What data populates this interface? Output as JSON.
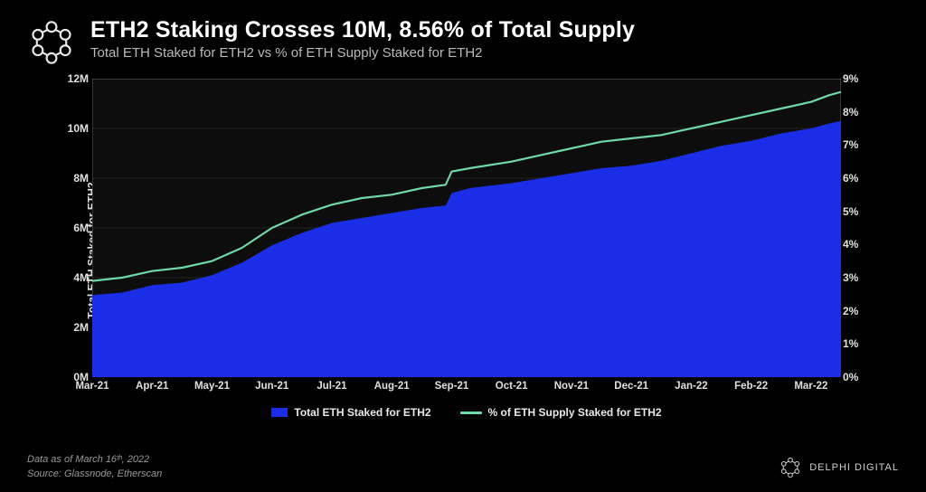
{
  "header": {
    "title": "ETH2 Staking Crosses 10M, 8.56% of Total Supply",
    "subtitle": "Total ETH Staked for ETH2 vs % of ETH Supply Staked for ETH2"
  },
  "chart": {
    "type": "area_and_line",
    "background_color": "#000000",
    "plot_background_color": "#0d0d0d",
    "grid_color": "#3a3a3a",
    "border_color": "#888888",
    "y_left": {
      "label": "Total ETH Staked for ETH2",
      "min": 0,
      "max": 12,
      "ticks": [
        0,
        2,
        4,
        6,
        8,
        10,
        12
      ],
      "tick_labels": [
        "0M",
        "2M",
        "4M",
        "6M",
        "8M",
        "10M",
        "12M"
      ]
    },
    "y_right": {
      "label": "% of ETH Supply Staked for ETH2",
      "min": 0,
      "max": 9,
      "ticks": [
        0,
        1,
        2,
        3,
        4,
        5,
        6,
        7,
        8,
        9
      ],
      "tick_labels": [
        "0%",
        "1%",
        "2%",
        "3%",
        "4%",
        "5%",
        "6%",
        "7%",
        "8%",
        "9%"
      ]
    },
    "x": {
      "ticks": [
        0,
        1,
        2,
        3,
        4,
        5,
        6,
        7,
        8,
        9,
        10,
        11,
        12
      ],
      "tick_labels": [
        "Mar-21",
        "Apr-21",
        "May-21",
        "Jun-21",
        "Jul-21",
        "Aug-21",
        "Sep-21",
        "Oct-21",
        "Nov-21",
        "Dec-21",
        "Jan-22",
        "Feb-22",
        "Mar-22"
      ],
      "min": 0,
      "max": 12.5
    },
    "series_area": {
      "name": "Total ETH Staked for ETH2",
      "color": "#1a2ee8",
      "points": [
        [
          0,
          3.3
        ],
        [
          0.5,
          3.4
        ],
        [
          1,
          3.7
        ],
        [
          1.5,
          3.8
        ],
        [
          2,
          4.1
        ],
        [
          2.5,
          4.6
        ],
        [
          3,
          5.3
        ],
        [
          3.5,
          5.8
        ],
        [
          4,
          6.2
        ],
        [
          4.5,
          6.4
        ],
        [
          5,
          6.6
        ],
        [
          5.5,
          6.8
        ],
        [
          5.9,
          6.9
        ],
        [
          6.0,
          7.4
        ],
        [
          6.3,
          7.6
        ],
        [
          7,
          7.8
        ],
        [
          7.5,
          8.0
        ],
        [
          8,
          8.2
        ],
        [
          8.5,
          8.4
        ],
        [
          9,
          8.5
        ],
        [
          9.5,
          8.7
        ],
        [
          10,
          9.0
        ],
        [
          10.5,
          9.3
        ],
        [
          11,
          9.5
        ],
        [
          11.5,
          9.8
        ],
        [
          12,
          10.0
        ],
        [
          12.3,
          10.2
        ],
        [
          12.5,
          10.3
        ]
      ]
    },
    "series_line": {
      "name": "% of ETH Supply Staked for ETH2",
      "color": "#6fd9a8",
      "line_width": 2.2,
      "points": [
        [
          0,
          2.9
        ],
        [
          0.5,
          3.0
        ],
        [
          1,
          3.2
        ],
        [
          1.5,
          3.3
        ],
        [
          2,
          3.5
        ],
        [
          2.5,
          3.9
        ],
        [
          3,
          4.5
        ],
        [
          3.5,
          4.9
        ],
        [
          4,
          5.2
        ],
        [
          4.5,
          5.4
        ],
        [
          5,
          5.5
        ],
        [
          5.5,
          5.7
        ],
        [
          5.9,
          5.8
        ],
        [
          6.0,
          6.2
        ],
        [
          6.3,
          6.3
        ],
        [
          7,
          6.5
        ],
        [
          7.5,
          6.7
        ],
        [
          8,
          6.9
        ],
        [
          8.5,
          7.1
        ],
        [
          9,
          7.2
        ],
        [
          9.5,
          7.3
        ],
        [
          10,
          7.5
        ],
        [
          10.5,
          7.7
        ],
        [
          11,
          7.9
        ],
        [
          11.5,
          8.1
        ],
        [
          12,
          8.3
        ],
        [
          12.3,
          8.5
        ],
        [
          12.5,
          8.6
        ]
      ]
    },
    "legend": [
      {
        "type": "area",
        "label": "Total ETH Staked for ETH2",
        "color": "#1a2ee8"
      },
      {
        "type": "line",
        "label": "% of ETH Supply Staked for ETH2",
        "color": "#6fd9a8"
      }
    ]
  },
  "footer": {
    "as_of": "Data as of March 16ᵗʰ, 2022",
    "source": "Source: Glassnode, Etherscan"
  },
  "brand": {
    "name": "DELPHI DIGITAL"
  },
  "colors": {
    "logo_stroke": "#e8e8e8"
  }
}
